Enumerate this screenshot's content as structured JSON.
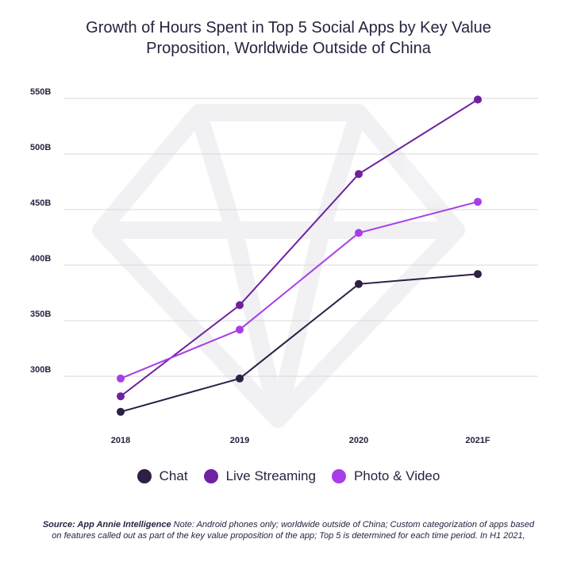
{
  "title_line1": "Growth of Hours Spent in Top 5 Social Apps by Key Value",
  "title_line2": "Proposition, Worldwide Outside of China",
  "legend": [
    {
      "label": "Chat",
      "color": "#2e1f45"
    },
    {
      "label": "Live Streaming",
      "color": "#6f22a0"
    },
    {
      "label": "Photo & Video",
      "color": "#a83ee8"
    }
  ],
  "source_label": "Source: App Annie Intelligence",
  "source_text": "Note: Android phones only;  worldwide outside of China; Custom categorization of apps based on features called out as part of the key value proposition of the app; Top 5 is determined for each time period. In H1 2021,",
  "chart_data": {
    "type": "line",
    "title": "Growth of Hours Spent in Top 5 Social Apps by Key Value Proposition, Worldwide Outside of China",
    "categories": [
      "2018",
      "2019",
      "2020",
      "2021F"
    ],
    "y_ticks": [
      300,
      350,
      400,
      450,
      500,
      550
    ],
    "y_tick_labels": [
      "300B",
      "350B",
      "400B",
      "450B",
      "500B",
      "550B"
    ],
    "ylim": [
      255,
      555
    ],
    "unit": "B",
    "grid": true,
    "legend_position": "bottom",
    "series": [
      {
        "name": "Chat",
        "color": "#2e1f45",
        "values": [
          268,
          298,
          383,
          392
        ]
      },
      {
        "name": "Live Streaming",
        "color": "#6f22a0",
        "values": [
          282,
          364,
          482,
          549
        ]
      },
      {
        "name": "Photo & Video",
        "color": "#a83ee8",
        "values": [
          298,
          342,
          429,
          457
        ]
      }
    ]
  }
}
